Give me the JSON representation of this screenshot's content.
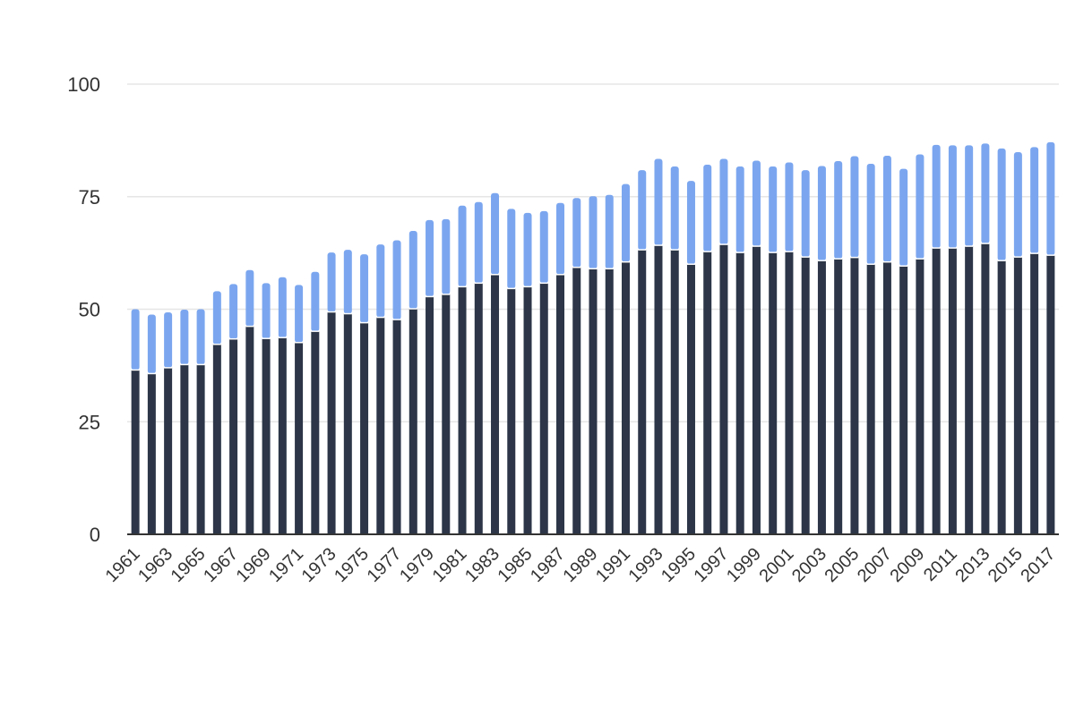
{
  "chart_data": {
    "type": "bar",
    "stacked": true,
    "title": "",
    "xlabel": "",
    "ylabel": "",
    "ylim": [
      0,
      100
    ],
    "yticks": [
      "0",
      "25",
      "50",
      "75",
      "100"
    ],
    "grid": true,
    "legend": "none",
    "colors": {
      "lower": "#2c3648",
      "upper": "#7ba6ef",
      "grid": "#e6e6e6",
      "axis": "#333333"
    },
    "categories": [
      "1961",
      "1962",
      "1963",
      "1964",
      "1965",
      "1966",
      "1967",
      "1968",
      "1969",
      "1970",
      "1971",
      "1972",
      "1973",
      "1974",
      "1975",
      "1976",
      "1977",
      "1978",
      "1979",
      "1980",
      "1981",
      "1982",
      "1983",
      "1984",
      "1985",
      "1986",
      "1987",
      "1988",
      "1989",
      "1990",
      "1991",
      "1992",
      "1993",
      "1994",
      "1995",
      "1996",
      "1997",
      "1998",
      "1999",
      "2000",
      "2001",
      "2002",
      "2003",
      "2004",
      "2005",
      "2006",
      "2007",
      "2008",
      "2009",
      "2010",
      "2011",
      "2012",
      "2013",
      "2014",
      "2015",
      "2016",
      "2017"
    ],
    "xtick_labels": [
      "1961",
      "1963",
      "1965",
      "1967",
      "1969",
      "1971",
      "1973",
      "1975",
      "1977",
      "1979",
      "1981",
      "1983",
      "1985",
      "1987",
      "1989",
      "1991",
      "1993",
      "1995",
      "1997",
      "1999",
      "2001",
      "2003",
      "2005",
      "2007",
      "2009",
      "2011",
      "2013",
      "2015",
      "2017"
    ],
    "series": [
      {
        "values": [
          36.5,
          35.7,
          37.0,
          37.7,
          37.7,
          42.2,
          43.4,
          46.2,
          43.5,
          43.7,
          42.6,
          45.1,
          49.4,
          49.0,
          47.0,
          48.2,
          47.7,
          50.1,
          52.8,
          53.3,
          55.0,
          55.8,
          57.7,
          54.6,
          55.0,
          55.8,
          57.7,
          59.3,
          59.0,
          59.0,
          60.5,
          63.2,
          64.2,
          63.2,
          60.0,
          62.8,
          64.4,
          62.6,
          64.0,
          62.6,
          62.8,
          61.6,
          60.8,
          61.2,
          61.5,
          60.0,
          60.5,
          59.6,
          61.2,
          63.6,
          63.6,
          64.0,
          64.6,
          60.8,
          61.6,
          62.4,
          62.0
        ]
      },
      {
        "values": [
          13.5,
          13.1,
          12.3,
          12.2,
          12.3,
          11.8,
          12.2,
          12.5,
          12.3,
          13.4,
          12.8,
          13.2,
          13.2,
          14.2,
          15.2,
          16.2,
          17.6,
          17.3,
          17.0,
          16.7,
          18.0,
          18.0,
          18.1,
          17.7,
          16.4,
          16.0,
          15.9,
          15.4,
          16.1,
          16.4,
          17.3,
          17.7,
          19.2,
          18.5,
          18.5,
          19.3,
          19.0,
          19.1,
          19.0,
          19.1,
          19.8,
          19.3,
          21.0,
          21.7,
          22.5,
          22.3,
          23.6,
          21.6,
          23.2,
          22.9,
          22.8,
          22.4,
          22.2,
          24.9,
          23.3,
          23.6,
          25.1
        ]
      }
    ]
  }
}
